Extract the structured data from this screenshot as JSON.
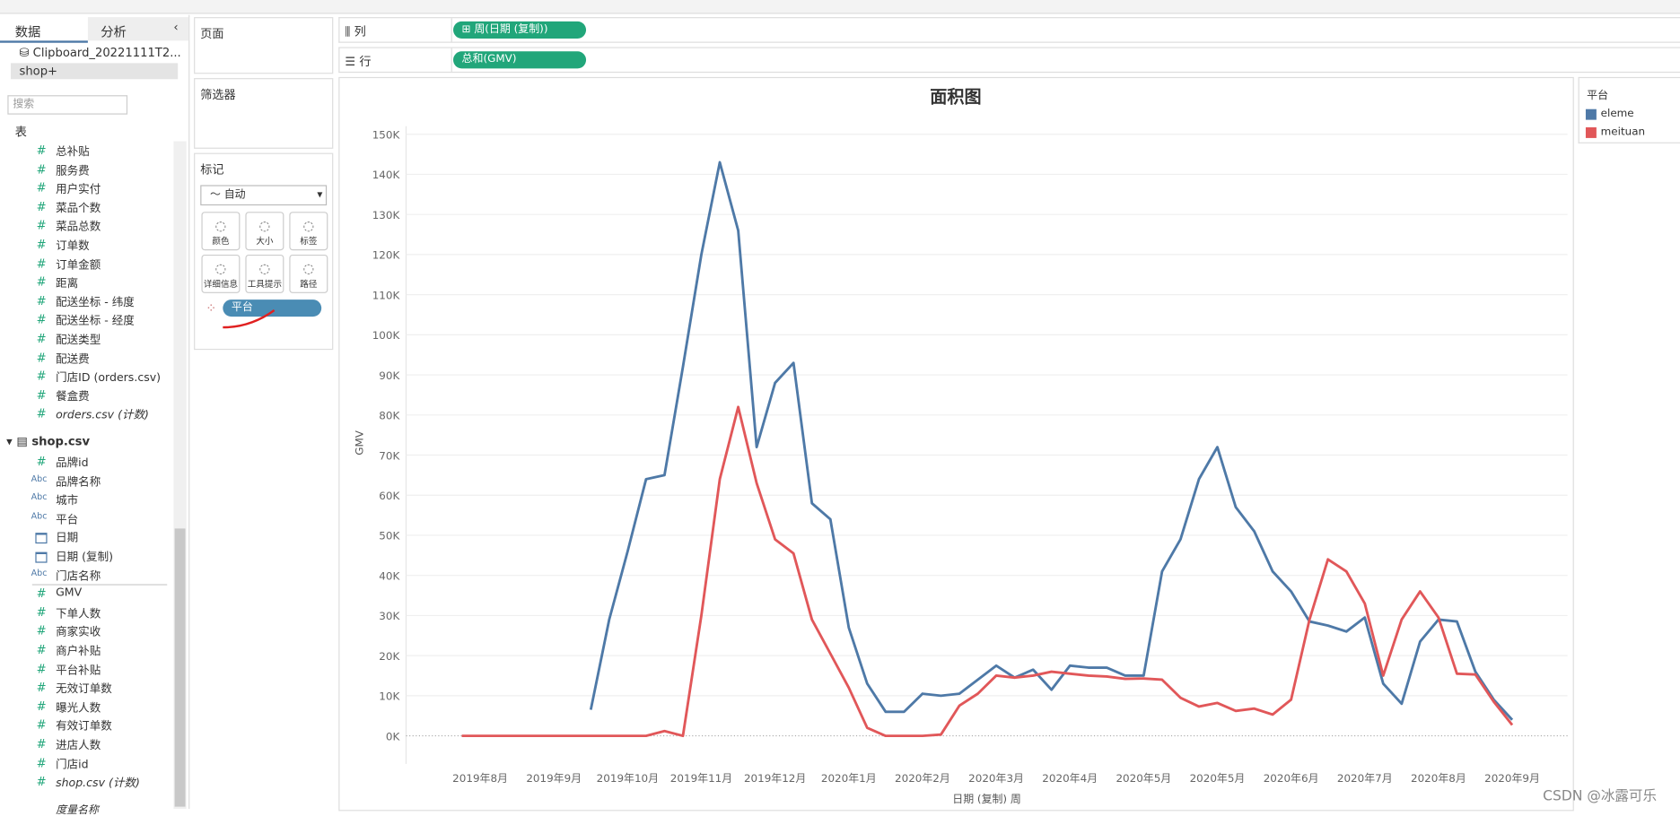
{
  "ui": {
    "tabs": [
      "数据",
      "分析"
    ],
    "sources": [
      "Clipboard_20221111T2...",
      "shop+"
    ],
    "search": "搜索",
    "tables_label": "表",
    "fields_a": [
      {
        "kind": "#",
        "name": "总补贴"
      },
      {
        "kind": "#",
        "name": "服务费"
      },
      {
        "kind": "#",
        "name": "用户实付"
      },
      {
        "kind": "#",
        "name": "菜品个数"
      },
      {
        "kind": "#",
        "name": "菜品总数"
      },
      {
        "kind": "#",
        "name": "订单数"
      },
      {
        "kind": "#",
        "name": "订单金额"
      },
      {
        "kind": "#",
        "name": "距离"
      },
      {
        "kind": "#",
        "name": "配送坐标 - 纬度"
      },
      {
        "kind": "#",
        "name": "配送坐标 - 经度"
      },
      {
        "kind": "#",
        "name": "配送类型"
      },
      {
        "kind": "#",
        "name": "配送费"
      },
      {
        "kind": "#",
        "name": "门店ID (orders.csv)"
      },
      {
        "kind": "#",
        "name": "餐盒费"
      },
      {
        "kind": "#",
        "name": "orders.csv (计数)",
        "italic": true
      }
    ],
    "table_b": "shop.csv",
    "fields_b": [
      {
        "kind": "#",
        "name": "品牌id"
      },
      {
        "kind": "Abc",
        "name": "品牌名称"
      },
      {
        "kind": "Abc",
        "name": "城市"
      },
      {
        "kind": "Abc",
        "name": "平台"
      },
      {
        "kind": "date",
        "name": "日期"
      },
      {
        "kind": "date",
        "name": "日期 (复制)"
      },
      {
        "kind": "Abc",
        "name": "门店名称"
      },
      {
        "kind": "#",
        "name": "GMV"
      },
      {
        "kind": "#",
        "name": "下单人数"
      },
      {
        "kind": "#",
        "name": "商家实收"
      },
      {
        "kind": "#",
        "name": "商户补贴"
      },
      {
        "kind": "#",
        "name": "平台补贴"
      },
      {
        "kind": "#",
        "name": "无效订单数"
      },
      {
        "kind": "#",
        "name": "曝光人数"
      },
      {
        "kind": "#",
        "name": "有效订单数"
      },
      {
        "kind": "#",
        "name": "进店人数"
      },
      {
        "kind": "#",
        "name": "门店id"
      },
      {
        "kind": "#",
        "name": "shop.csv (计数)",
        "italic": true
      }
    ],
    "last_field": "度量名称",
    "pages": "页面",
    "columns": "列",
    "columns_pill": "周(日期 (复制))",
    "rows": "行",
    "rows_pill": "总和(GMV)",
    "filters": "筛选器",
    "marks": "标记",
    "mark_type": "自动",
    "mark_buttons": [
      "颜色",
      "大小",
      "标签",
      "详细信息",
      "工具提示",
      "路径"
    ],
    "color_pill": "平台",
    "watermark": "CSDN @冰露可乐"
  },
  "chart_data": {
    "type": "line",
    "title": "面积图",
    "y_label": "GMV",
    "x_label": "日期 (复制) 周",
    "legend_title": "平台",
    "legend_position": "right",
    "grid": true,
    "categories": [
      null,
      "2019年8月",
      null,
      null,
      null,
      "2019年9月",
      null,
      null,
      null,
      "2019年10月",
      null,
      null,
      null,
      "2019年11月",
      null,
      null,
      null,
      "2019年12月",
      null,
      null,
      null,
      "2020年1月",
      null,
      null,
      null,
      "2020年2月",
      null,
      null,
      null,
      "2020年3月",
      null,
      null,
      null,
      "2020年4月",
      null,
      null,
      null,
      "2020年5月",
      null,
      null,
      null,
      "2020年5月",
      null,
      null,
      null,
      "2020年6月",
      null,
      null,
      null,
      "2020年7月",
      null,
      null,
      null,
      "2020年8月",
      null,
      null,
      null,
      "2020年9月"
    ],
    "series": [
      {
        "name": "eleme",
        "color": "#4e79a7",
        "values": [
          null,
          null,
          null,
          null,
          null,
          null,
          null,
          6500,
          29000,
          46000,
          64000,
          65000,
          92000,
          120000,
          143000,
          126000,
          72000,
          88000,
          93000,
          58000,
          54000,
          27000,
          13000,
          6000,
          6000,
          10500,
          10000,
          10500,
          14000,
          17500,
          14500,
          16500,
          11500,
          17500,
          17000,
          17000,
          15000,
          15000,
          41000,
          49000,
          64000,
          72000,
          57000,
          51000,
          41000,
          36000,
          28500,
          27500,
          26000,
          29500,
          13000,
          8000,
          23500,
          29000,
          28500,
          16000,
          9000,
          4000
        ]
      },
      {
        "name": "meituan",
        "color": "#e15759",
        "values": [
          0,
          0,
          0,
          0,
          0,
          0,
          0,
          0,
          0,
          0,
          0,
          1200,
          0,
          30000,
          64000,
          82000,
          63000,
          49000,
          45500,
          29000,
          20500,
          12000,
          2000,
          0,
          0,
          0,
          300,
          7500,
          10500,
          15000,
          14500,
          15000,
          16000,
          15500,
          15000,
          14800,
          14200,
          14300,
          14000,
          9500,
          7300,
          8200,
          6200,
          6800,
          5300,
          9000,
          29000,
          44000,
          41000,
          33000,
          15000,
          29000,
          36000,
          29500,
          15500,
          15300,
          8500,
          2700
        ]
      }
    ],
    "ylim": [
      -7000,
      152000
    ],
    "yticks": [
      {
        "value": 0,
        "label": "0K"
      },
      {
        "value": 10000,
        "label": "10K"
      },
      {
        "value": 20000,
        "label": "20K"
      },
      {
        "value": 30000,
        "label": "30K"
      },
      {
        "value": 40000,
        "label": "40K"
      },
      {
        "value": 50000,
        "label": "50K"
      },
      {
        "value": 60000,
        "label": "60K"
      },
      {
        "value": 70000,
        "label": "70K"
      },
      {
        "value": 80000,
        "label": "80K"
      },
      {
        "value": 90000,
        "label": "90K"
      },
      {
        "value": 100000,
        "label": "100K"
      },
      {
        "value": 110000,
        "label": "110K"
      },
      {
        "value": 120000,
        "label": "120K"
      },
      {
        "value": 130000,
        "label": "130K"
      },
      {
        "value": 140000,
        "label": "140K"
      },
      {
        "value": 150000,
        "label": "150K"
      }
    ]
  }
}
